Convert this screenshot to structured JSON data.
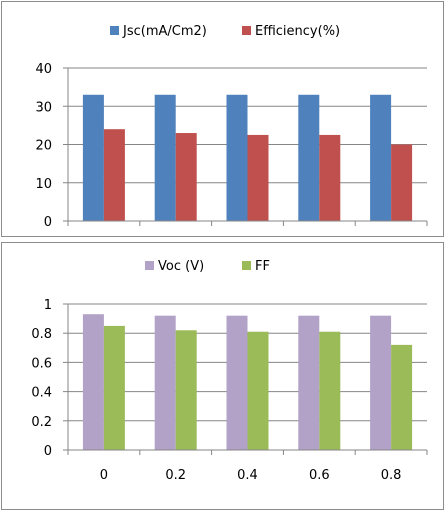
{
  "chart_data": [
    {
      "type": "bar",
      "categories": [
        "0",
        "0.2",
        "0.4",
        "0.6",
        "0.8"
      ],
      "series": [
        {
          "name": "Jsc(mA/Cm2)",
          "color": "#4f81bd",
          "values": [
            33,
            33,
            33,
            33,
            33
          ]
        },
        {
          "name": "Efficiency(%)",
          "color": "#c0504d",
          "values": [
            24,
            23,
            22.5,
            22.5,
            20
          ]
        }
      ],
      "ylim": [
        0,
        40
      ],
      "yticks": [
        "0",
        "10",
        "20",
        "30",
        "40"
      ],
      "ytick_values": [
        0,
        10,
        20,
        30,
        40
      ],
      "show_xtick_labels": false,
      "grid": true,
      "legend": "top"
    },
    {
      "type": "bar",
      "categories": [
        "0",
        "0.2",
        "0.4",
        "0.6",
        "0.8"
      ],
      "series": [
        {
          "name": "Voc (V)",
          "color": "#b2a2c7",
          "values": [
            0.93,
            0.92,
            0.92,
            0.92,
            0.92
          ]
        },
        {
          "name": "FF",
          "color": "#9bbb59",
          "values": [
            0.85,
            0.82,
            0.81,
            0.81,
            0.72
          ]
        }
      ],
      "ylim": [
        0,
        1
      ],
      "yticks": [
        "0",
        "0.2",
        "0.4",
        "0.6",
        "0.8",
        "1"
      ],
      "ytick_values": [
        0,
        0.2,
        0.4,
        0.6,
        0.8,
        1
      ],
      "show_xtick_labels": true,
      "grid": true,
      "legend": "top"
    }
  ]
}
